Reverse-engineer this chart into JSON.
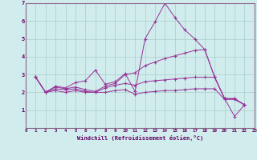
{
  "xlabel": "Windchill (Refroidissement éolien,°C)",
  "bg_color": "#d0ecec",
  "line_color": "#993399",
  "grid_color": "#aacccc",
  "axis_label_color": "#660066",
  "tick_color": "#660066",
  "spine_color": "#886688",
  "xlim": [
    0,
    23
  ],
  "ylim": [
    0,
    7
  ],
  "xticks": [
    0,
    1,
    2,
    3,
    4,
    5,
    6,
    7,
    8,
    9,
    10,
    11,
    12,
    13,
    14,
    15,
    16,
    17,
    18,
    19,
    20,
    21,
    22,
    23
  ],
  "yticks": [
    1,
    2,
    3,
    4,
    5,
    6,
    7
  ],
  "series": [
    [
      2.85,
      2.0,
      2.35,
      2.25,
      2.55,
      2.65,
      3.25,
      2.45,
      2.6,
      3.05,
      2.05,
      5.0,
      5.95,
      7.0,
      6.2,
      5.5,
      5.0,
      4.4,
      2.85,
      1.65,
      0.65,
      1.3
    ],
    [
      2.85,
      2.0,
      2.3,
      2.2,
      2.3,
      2.15,
      2.05,
      2.35,
      2.5,
      3.0,
      3.1,
      3.5,
      3.7,
      3.9,
      4.05,
      4.2,
      4.35,
      4.4,
      2.85,
      1.65,
      1.65,
      1.3
    ],
    [
      2.85,
      2.0,
      2.2,
      2.15,
      2.2,
      2.05,
      2.0,
      2.25,
      2.4,
      2.5,
      2.4,
      2.6,
      2.65,
      2.7,
      2.75,
      2.8,
      2.85,
      2.85,
      2.85,
      1.65,
      1.65,
      1.3
    ],
    [
      2.85,
      2.0,
      2.1,
      2.0,
      2.1,
      2.0,
      2.0,
      2.0,
      2.1,
      2.15,
      1.9,
      2.0,
      2.05,
      2.1,
      2.1,
      2.15,
      2.2,
      2.2,
      2.2,
      1.6,
      1.6,
      1.3
    ]
  ],
  "x_start": 1
}
